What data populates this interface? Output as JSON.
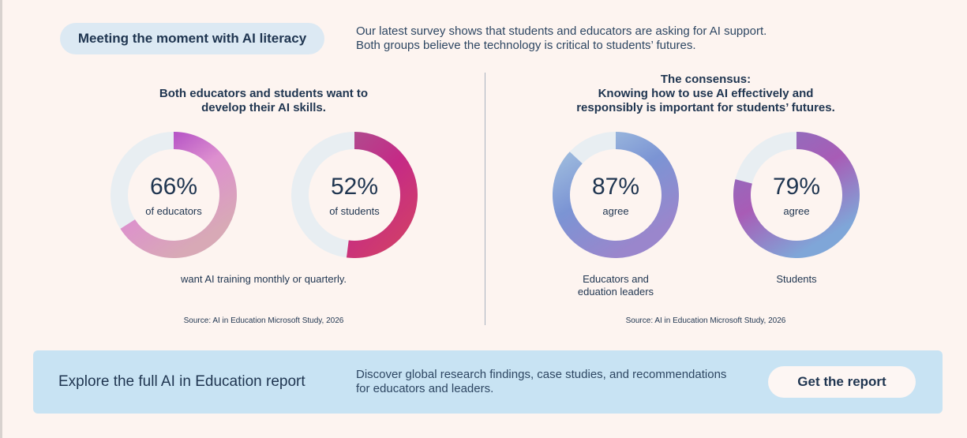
{
  "header": {
    "tag": "Meeting the moment with AI literacy",
    "intro_line1": "Our latest survey shows that students and educators are asking for AI support.",
    "intro_line2": "Both groups believe the technology is critical to students’ futures."
  },
  "left_panel": {
    "heading_line1": "Both educators and students want to",
    "heading_line2": "develop their AI skills.",
    "donuts": [
      {
        "percent_label": "66%",
        "sub": "of educators",
        "value": 66,
        "colors": {
          "start": "#a43ac2",
          "mid": "#dd8fcf",
          "end": "#d8a9b6",
          "track": "#e8eef2"
        }
      },
      {
        "percent_label": "52%",
        "sub": "of students",
        "value": 52,
        "colors": {
          "start": "#b04a8e",
          "mid": "#c52a86",
          "end": "#cf3b6e",
          "track": "#e8eef2"
        }
      }
    ],
    "caption": "want AI training monthly or quarterly.",
    "source": "Source: AI in Education Microsoft Study, 2026"
  },
  "right_panel": {
    "heading_line1": "The consensus:",
    "heading_line2": "Knowing how to use AI effectively and",
    "heading_line3": "responsibly is important for students’ futures.",
    "donuts": [
      {
        "percent_label": "87%",
        "sub": "agree",
        "value": 87,
        "label_line1": "Educators and",
        "label_line2": "eduation leaders",
        "colors": {
          "start": "#a6c4e0",
          "mid": "#7b94d4",
          "end": "#9a86cc",
          "track": "#e8eef2"
        }
      },
      {
        "percent_label": "79%",
        "sub": "agree",
        "value": 79,
        "label_line1": "Students",
        "label_line2": "",
        "colors": {
          "start": "#8a72bf",
          "mid": "#a85cb6",
          "end": "#7fa6d8",
          "track": "#e8eef2"
        }
      }
    ],
    "source": "Source: AI in Education Microsoft Study, 2026"
  },
  "banner": {
    "title": "Explore the full AI in Education report",
    "desc_line1": "Discover global research findings, case studies, and recommendations",
    "desc_line2": "for educators and leaders.",
    "cta_label": "Get the report"
  }
}
